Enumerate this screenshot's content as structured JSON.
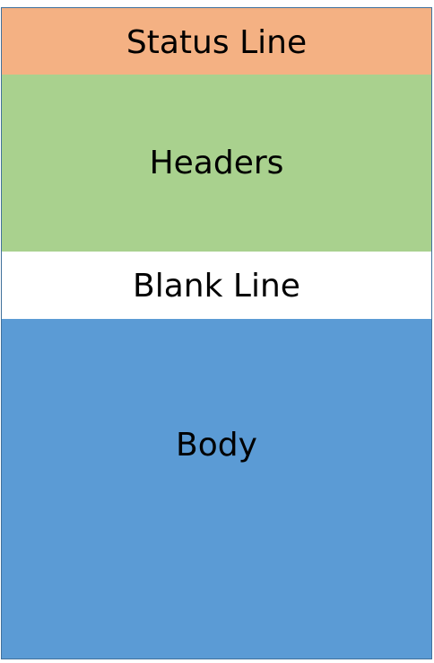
{
  "sections": {
    "status_line": {
      "label": "Status Line",
      "color": "#f4b183"
    },
    "headers": {
      "label": "Headers",
      "color": "#a9d18e"
    },
    "blank_line": {
      "label": "Blank Line",
      "color": "#ffffff"
    },
    "body": {
      "label": "Body",
      "color": "#5b9bd5"
    }
  }
}
